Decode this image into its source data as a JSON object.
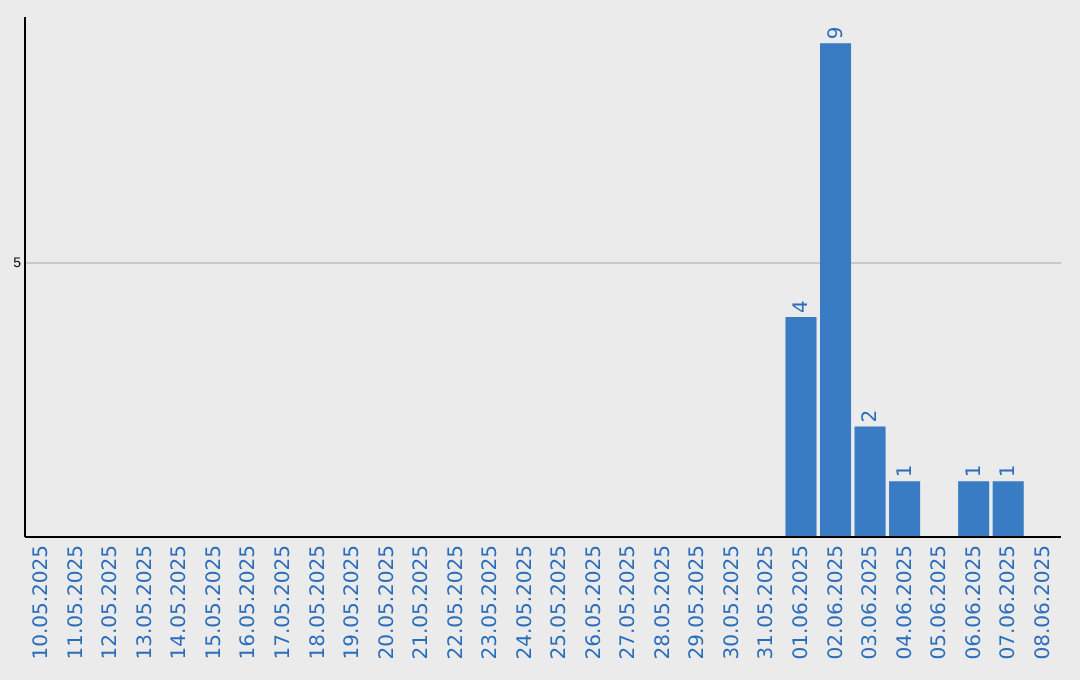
{
  "chart_data": {
    "type": "bar",
    "categories": [
      "10.05.2025",
      "11.05.2025",
      "12.05.2025",
      "13.05.2025",
      "14.05.2025",
      "15.05.2025",
      "16.05.2025",
      "17.05.2025",
      "18.05.2025",
      "19.05.2025",
      "20.05.2025",
      "21.05.2025",
      "22.05.2025",
      "23.05.2025",
      "24.05.2025",
      "25.05.2025",
      "26.05.2025",
      "27.05.2025",
      "28.05.2025",
      "29.05.2025",
      "30.05.2025",
      "31.05.2025",
      "01.06.2025",
      "02.06.2025",
      "03.06.2025",
      "04.06.2025",
      "05.06.2025",
      "06.06.2025",
      "07.06.2025",
      "08.06.2025"
    ],
    "values": [
      null,
      null,
      null,
      null,
      null,
      null,
      null,
      null,
      null,
      null,
      null,
      null,
      null,
      null,
      null,
      null,
      null,
      null,
      null,
      null,
      null,
      null,
      4,
      9,
      2,
      1,
      null,
      1,
      1,
      null
    ],
    "color": "#3a7cc4",
    "ylim": [
      0,
      9.5
    ],
    "yticks": [
      5
    ],
    "grid": "y",
    "data_labels": true
  }
}
